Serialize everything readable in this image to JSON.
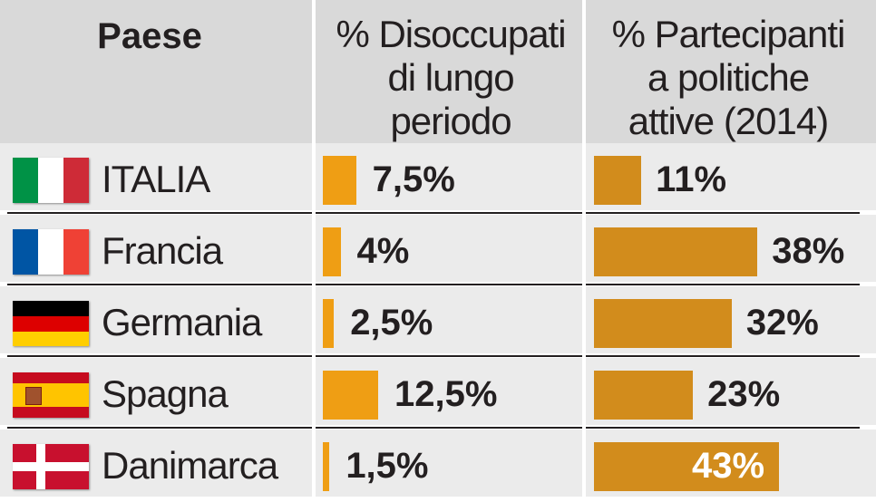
{
  "header": {
    "country": "Paese",
    "col1_lines": [
      "% Disoccupati",
      "di lungo",
      "periodo"
    ],
    "col2_lines": [
      "% Partecipanti",
      "a politiche",
      "attive (2014)"
    ]
  },
  "colors": {
    "header_bg": "#d9d9d9",
    "row_bg": "#ebebeb",
    "bar_col1": "#ef9e14",
    "bar_col2": "#d28c1c"
  },
  "chart_data": {
    "type": "bar",
    "title": "",
    "categories": [
      "ITALIA",
      "Francia",
      "Germania",
      "Spagna",
      "Danimarca"
    ],
    "series": [
      {
        "name": "% Disoccupati di lungo periodo",
        "values": [
          7.5,
          4,
          2.5,
          12.5,
          1.5
        ],
        "labels": [
          "7,5%",
          "4%",
          "2,5%",
          "12,5%",
          "1,5%"
        ]
      },
      {
        "name": "% Partecipanti a politiche attive (2014)",
        "values": [
          11,
          38,
          32,
          23,
          43
        ],
        "labels": [
          "11%",
          "38%",
          "32%",
          "23%",
          "43%"
        ]
      }
    ],
    "grid": false,
    "legend": "none"
  },
  "rows": [
    {
      "country": "ITALIA",
      "flag": "italy-flag"
    },
    {
      "country": "Francia",
      "flag": "france-flag"
    },
    {
      "country": "Germania",
      "flag": "germany-flag"
    },
    {
      "country": "Spagna",
      "flag": "spain-flag"
    },
    {
      "country": "Danimarca",
      "flag": "denmark-flag"
    }
  ]
}
